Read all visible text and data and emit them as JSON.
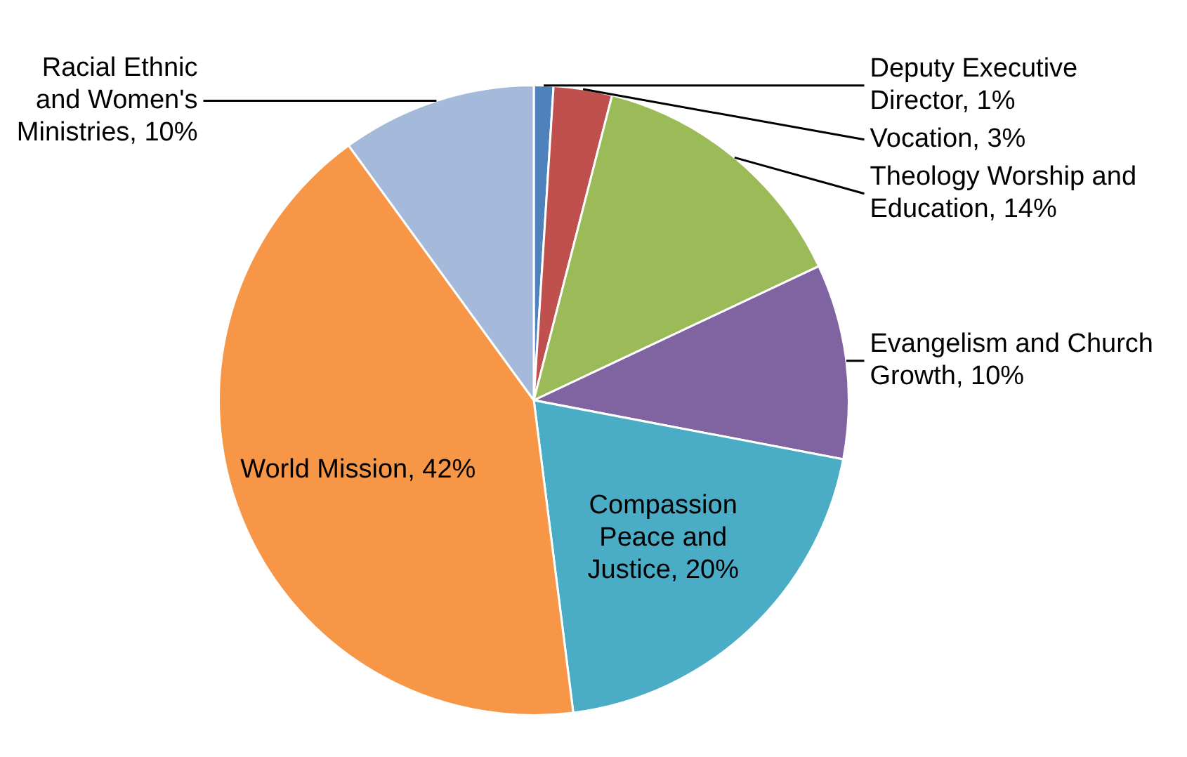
{
  "chart_data": {
    "type": "pie",
    "categories": [
      "Deputy Executive Director",
      "Vocation",
      "Theology Worship and Education",
      "Evangelism and Church Growth",
      "Compassion Peace and Justice",
      "World Mission",
      "Racial Ethnic and Women's Ministries"
    ],
    "values": [
      1,
      3,
      14,
      10,
      20,
      42,
      10
    ],
    "value_labels": [
      "1%",
      "3%",
      "14%",
      "10%",
      "20%",
      "42%",
      "10%"
    ],
    "colors": [
      "#4f81bd",
      "#c0504d",
      "#9bbb59",
      "#8064a2",
      "#4bacc6",
      "#f79646",
      "#a5b9db"
    ],
    "legend": false
  }
}
